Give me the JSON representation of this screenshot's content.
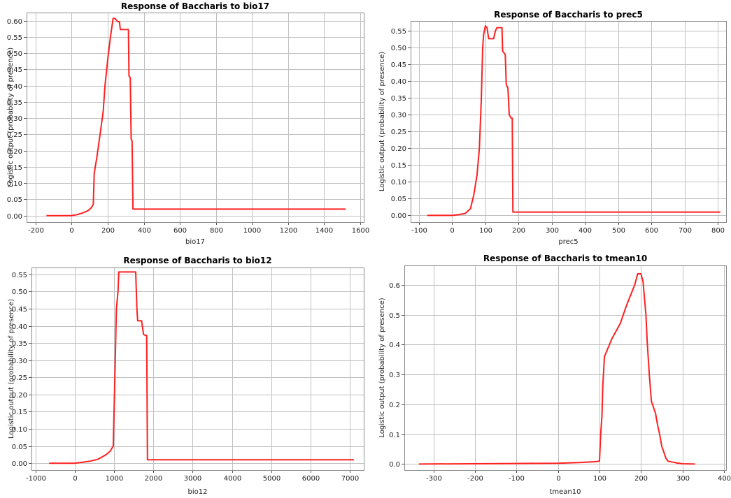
{
  "colors": {
    "curve": "#ff2020",
    "grid": "#c0c0c0",
    "frame": "#8a8a8a"
  },
  "chart_data": [
    {
      "type": "line",
      "title": "Response of Baccharis to bio17",
      "xlabel": "bio17",
      "ylabel": "Logistic output (probability of presence)",
      "xticks": [
        -200,
        0,
        200,
        400,
        600,
        800,
        1000,
        1200,
        1400,
        1600
      ],
      "yticks": [
        0,
        0.05,
        0.1,
        0.15,
        0.2,
        0.25,
        0.3,
        0.35,
        0.4,
        0.45,
        0.5,
        0.55,
        0.6
      ],
      "ytick_decimals": 2,
      "xlim": [
        -250,
        1620
      ],
      "ylim": [
        -0.02,
        0.625
      ],
      "grid": true,
      "series": [
        {
          "x": [
            -140,
            0,
            30,
            60,
            90,
            110,
            120,
            125,
            140,
            160,
            175,
            185,
            200,
            215,
            230,
            240,
            255,
            265,
            270,
            280,
            300,
            315,
            318,
            325,
            330,
            335,
            338,
            340,
            345,
            1520
          ],
          "y": [
            0.0,
            0.0,
            0.003,
            0.008,
            0.015,
            0.025,
            0.035,
            0.13,
            0.18,
            0.26,
            0.32,
            0.4,
            0.48,
            0.55,
            0.607,
            0.607,
            0.597,
            0.597,
            0.573,
            0.573,
            0.573,
            0.573,
            0.43,
            0.425,
            0.235,
            0.23,
            0.1,
            0.02,
            0.02,
            0.02
          ]
        }
      ]
    },
    {
      "type": "line",
      "title": "Response of Baccharis to prec5",
      "xlabel": "prec5",
      "ylabel": "Logistic output (probability of presence)",
      "xticks": [
        -100,
        0,
        100,
        200,
        300,
        400,
        500,
        600,
        700,
        800
      ],
      "yticks": [
        0,
        0.05,
        0.1,
        0.15,
        0.2,
        0.25,
        0.3,
        0.35,
        0.4,
        0.45,
        0.5,
        0.55
      ],
      "ytick_decimals": 2,
      "xlim": [
        -125,
        825
      ],
      "ylim": [
        -0.02,
        0.58
      ],
      "grid": true,
      "series": [
        {
          "x": [
            -75,
            0,
            20,
            40,
            55,
            65,
            75,
            82,
            88,
            92,
            95,
            100,
            105,
            110,
            125,
            130,
            135,
            140,
            150,
            152,
            160,
            163,
            168,
            172,
            178,
            181,
            183,
            808
          ],
          "y": [
            0.0,
            0.0,
            0.002,
            0.006,
            0.02,
            0.06,
            0.12,
            0.2,
            0.35,
            0.5,
            0.54,
            0.565,
            0.56,
            0.527,
            0.527,
            0.55,
            0.56,
            0.56,
            0.56,
            0.49,
            0.48,
            0.39,
            0.38,
            0.3,
            0.29,
            0.29,
            0.01,
            0.01
          ]
        }
      ]
    },
    {
      "type": "line",
      "title": "Response of Baccharis to bio12",
      "xlabel": "bio12",
      "ylabel": "Logistic output (probability of presence)",
      "xticks": [
        -1000,
        0,
        1000,
        2000,
        3000,
        4000,
        5000,
        6000,
        7000
      ],
      "yticks": [
        0,
        0.05,
        0.1,
        0.15,
        0.2,
        0.25,
        0.3,
        0.35,
        0.4,
        0.45,
        0.5,
        0.55
      ],
      "ytick_decimals": 2,
      "xlim": [
        -1100,
        7350
      ],
      "ylim": [
        -0.02,
        0.57
      ],
      "grid": true,
      "series": [
        {
          "x": [
            -650,
            0,
            200,
            400,
            600,
            800,
            900,
            980,
            1020,
            1060,
            1100,
            1120,
            1150,
            1550,
            1580,
            1600,
            1700,
            1750,
            1800,
            1830,
            1850,
            7100
          ],
          "y": [
            0.0,
            0.0,
            0.003,
            0.006,
            0.012,
            0.025,
            0.035,
            0.05,
            0.25,
            0.45,
            0.5,
            0.557,
            0.557,
            0.557,
            0.45,
            0.415,
            0.415,
            0.375,
            0.372,
            0.372,
            0.01,
            0.01
          ]
        }
      ]
    },
    {
      "type": "line",
      "title": "Response of Baccharis to tmean10",
      "xlabel": "tmean10",
      "ylabel": "Logistic output (probability of presence)",
      "xticks": [
        -300,
        -200,
        -100,
        0,
        100,
        200,
        300,
        400
      ],
      "yticks": [
        0,
        0.1,
        0.2,
        0.3,
        0.4,
        0.5,
        0.6
      ],
      "ytick_decimals": 1,
      "xlim": [
        -370,
        405
      ],
      "ylim": [
        -0.02,
        0.665
      ],
      "grid": true,
      "series": [
        {
          "x": [
            -335,
            -100,
            0,
            50,
            90,
            100,
            103,
            106,
            108,
            112,
            115,
            130,
            150,
            165,
            185,
            192,
            200,
            205,
            212,
            215,
            220,
            225,
            235,
            240,
            245,
            250,
            255,
            260,
            265,
            285,
            300,
            330
          ],
          "y": [
            0.0,
            0.002,
            0.003,
            0.005,
            0.008,
            0.01,
            0.1,
            0.16,
            0.26,
            0.36,
            0.37,
            0.42,
            0.47,
            0.53,
            0.6,
            0.637,
            0.637,
            0.61,
            0.5,
            0.41,
            0.3,
            0.21,
            0.17,
            0.13,
            0.1,
            0.06,
            0.04,
            0.02,
            0.01,
            0.004,
            0.001,
            0.0
          ]
        }
      ]
    }
  ]
}
